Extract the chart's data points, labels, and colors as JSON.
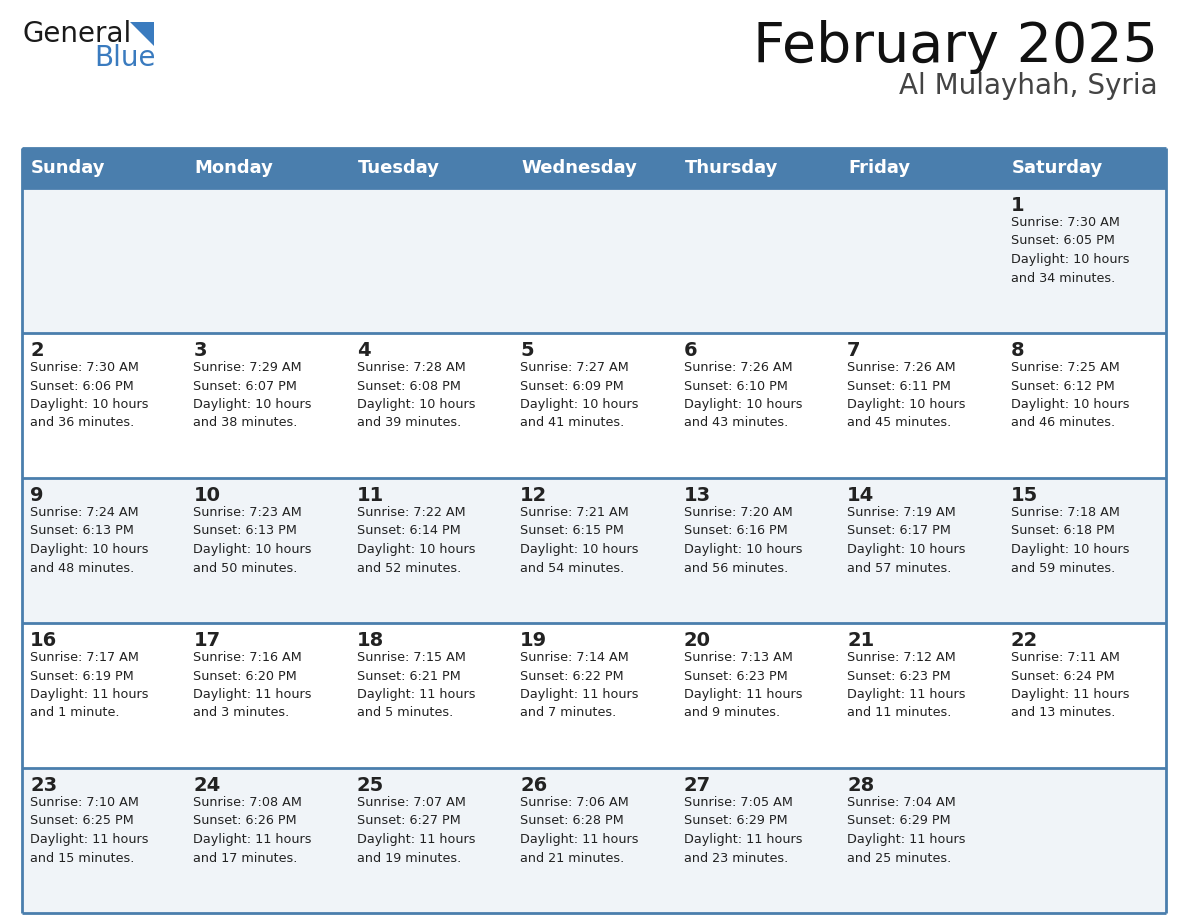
{
  "title": "February 2025",
  "subtitle": "Al Mulayhah, Syria",
  "header_bg": "#4A7EAD",
  "header_text_color": "#FFFFFF",
  "header_days": [
    "Sunday",
    "Monday",
    "Tuesday",
    "Wednesday",
    "Thursday",
    "Friday",
    "Saturday"
  ],
  "row_bg_odd": "#F0F4F8",
  "row_bg_even": "#FFFFFF",
  "cell_border_color": "#4A7EAD",
  "day_number_color": "#222222",
  "info_text_color": "#222222",
  "title_color": "#111111",
  "subtitle_color": "#444444",
  "fig_width": 11.88,
  "fig_height": 9.18,
  "dpi": 100,
  "calendar": [
    [
      {
        "day": null,
        "info": null
      },
      {
        "day": null,
        "info": null
      },
      {
        "day": null,
        "info": null
      },
      {
        "day": null,
        "info": null
      },
      {
        "day": null,
        "info": null
      },
      {
        "day": null,
        "info": null
      },
      {
        "day": 1,
        "info": "Sunrise: 7:30 AM\nSunset: 6:05 PM\nDaylight: 10 hours\nand 34 minutes."
      }
    ],
    [
      {
        "day": 2,
        "info": "Sunrise: 7:30 AM\nSunset: 6:06 PM\nDaylight: 10 hours\nand 36 minutes."
      },
      {
        "day": 3,
        "info": "Sunrise: 7:29 AM\nSunset: 6:07 PM\nDaylight: 10 hours\nand 38 minutes."
      },
      {
        "day": 4,
        "info": "Sunrise: 7:28 AM\nSunset: 6:08 PM\nDaylight: 10 hours\nand 39 minutes."
      },
      {
        "day": 5,
        "info": "Sunrise: 7:27 AM\nSunset: 6:09 PM\nDaylight: 10 hours\nand 41 minutes."
      },
      {
        "day": 6,
        "info": "Sunrise: 7:26 AM\nSunset: 6:10 PM\nDaylight: 10 hours\nand 43 minutes."
      },
      {
        "day": 7,
        "info": "Sunrise: 7:26 AM\nSunset: 6:11 PM\nDaylight: 10 hours\nand 45 minutes."
      },
      {
        "day": 8,
        "info": "Sunrise: 7:25 AM\nSunset: 6:12 PM\nDaylight: 10 hours\nand 46 minutes."
      }
    ],
    [
      {
        "day": 9,
        "info": "Sunrise: 7:24 AM\nSunset: 6:13 PM\nDaylight: 10 hours\nand 48 minutes."
      },
      {
        "day": 10,
        "info": "Sunrise: 7:23 AM\nSunset: 6:13 PM\nDaylight: 10 hours\nand 50 minutes."
      },
      {
        "day": 11,
        "info": "Sunrise: 7:22 AM\nSunset: 6:14 PM\nDaylight: 10 hours\nand 52 minutes."
      },
      {
        "day": 12,
        "info": "Sunrise: 7:21 AM\nSunset: 6:15 PM\nDaylight: 10 hours\nand 54 minutes."
      },
      {
        "day": 13,
        "info": "Sunrise: 7:20 AM\nSunset: 6:16 PM\nDaylight: 10 hours\nand 56 minutes."
      },
      {
        "day": 14,
        "info": "Sunrise: 7:19 AM\nSunset: 6:17 PM\nDaylight: 10 hours\nand 57 minutes."
      },
      {
        "day": 15,
        "info": "Sunrise: 7:18 AM\nSunset: 6:18 PM\nDaylight: 10 hours\nand 59 minutes."
      }
    ],
    [
      {
        "day": 16,
        "info": "Sunrise: 7:17 AM\nSunset: 6:19 PM\nDaylight: 11 hours\nand 1 minute."
      },
      {
        "day": 17,
        "info": "Sunrise: 7:16 AM\nSunset: 6:20 PM\nDaylight: 11 hours\nand 3 minutes."
      },
      {
        "day": 18,
        "info": "Sunrise: 7:15 AM\nSunset: 6:21 PM\nDaylight: 11 hours\nand 5 minutes."
      },
      {
        "day": 19,
        "info": "Sunrise: 7:14 AM\nSunset: 6:22 PM\nDaylight: 11 hours\nand 7 minutes."
      },
      {
        "day": 20,
        "info": "Sunrise: 7:13 AM\nSunset: 6:23 PM\nDaylight: 11 hours\nand 9 minutes."
      },
      {
        "day": 21,
        "info": "Sunrise: 7:12 AM\nSunset: 6:23 PM\nDaylight: 11 hours\nand 11 minutes."
      },
      {
        "day": 22,
        "info": "Sunrise: 7:11 AM\nSunset: 6:24 PM\nDaylight: 11 hours\nand 13 minutes."
      }
    ],
    [
      {
        "day": 23,
        "info": "Sunrise: 7:10 AM\nSunset: 6:25 PM\nDaylight: 11 hours\nand 15 minutes."
      },
      {
        "day": 24,
        "info": "Sunrise: 7:08 AM\nSunset: 6:26 PM\nDaylight: 11 hours\nand 17 minutes."
      },
      {
        "day": 25,
        "info": "Sunrise: 7:07 AM\nSunset: 6:27 PM\nDaylight: 11 hours\nand 19 minutes."
      },
      {
        "day": 26,
        "info": "Sunrise: 7:06 AM\nSunset: 6:28 PM\nDaylight: 11 hours\nand 21 minutes."
      },
      {
        "day": 27,
        "info": "Sunrise: 7:05 AM\nSunset: 6:29 PM\nDaylight: 11 hours\nand 23 minutes."
      },
      {
        "day": 28,
        "info": "Sunrise: 7:04 AM\nSunset: 6:29 PM\nDaylight: 11 hours\nand 25 minutes."
      },
      {
        "day": null,
        "info": null
      }
    ]
  ]
}
